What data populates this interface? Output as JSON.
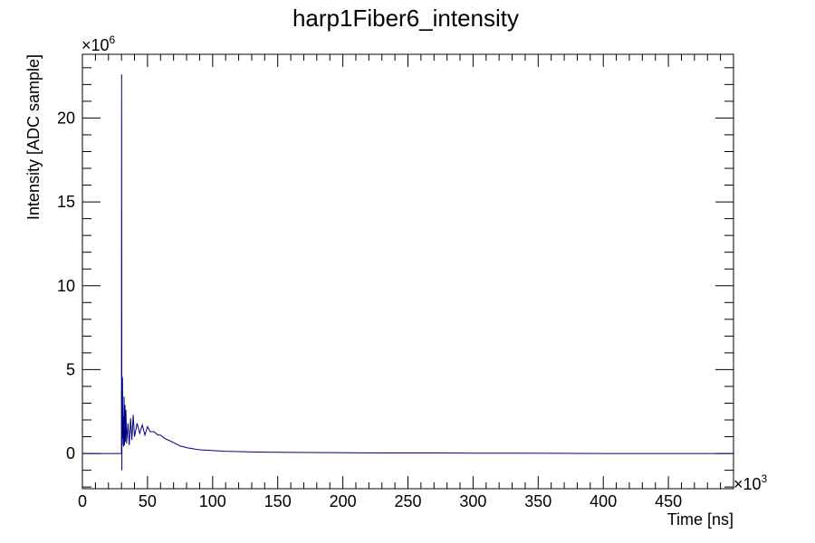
{
  "chart_data": {
    "type": "line",
    "title": "harp1Fiber6_intensity",
    "xlabel": "Time [ns]",
    "ylabel": "Intensity [ADC sample]",
    "x_multiplier": {
      "base": "×10",
      "power": "3"
    },
    "y_multiplier": {
      "base": "×10",
      "power": "6"
    },
    "xlim": [
      0,
      500
    ],
    "ylim": [
      -2.1,
      23.8
    ],
    "x_ticks": [
      0,
      50,
      100,
      150,
      200,
      250,
      300,
      350,
      400,
      450
    ],
    "x_tick_labels": [
      "0",
      "50",
      "100",
      "150",
      "200",
      "250",
      "300",
      "350",
      "400",
      "450"
    ],
    "y_ticks": [
      0,
      5,
      10,
      15,
      20
    ],
    "y_tick_labels": [
      "0",
      "5",
      "10",
      "15",
      "20"
    ],
    "grid": false,
    "legend": "none",
    "series": [
      {
        "color": "#00007f",
        "x": [
          0,
          29.8,
          30.0,
          30.1,
          30.3,
          30.5,
          30.6,
          30.8,
          31.0,
          31.3,
          31.6,
          32.0,
          32.3,
          32.7,
          33.0,
          33.4,
          34.0,
          35.0,
          36.0,
          37.0,
          38.0,
          39.0,
          40.0,
          42.0,
          44.0,
          46.0,
          48.0,
          50.0,
          52.0,
          55.0,
          58.0,
          60.0,
          63.0,
          66.0,
          70.0,
          75.0,
          80.0,
          85.0,
          90.0,
          100.0,
          110.0,
          120.0,
          130.0,
          140.0,
          150.0,
          170.0,
          190.0,
          210.0,
          240.0,
          270.0,
          300.0,
          330.0,
          365.0,
          400.0,
          450.0,
          500.0
        ],
        "y": [
          0,
          0,
          0.0,
          22.6,
          -1.0,
          4.6,
          0.5,
          4.5,
          0.9,
          2.2,
          0.4,
          3.4,
          0.5,
          2.9,
          0.7,
          2.6,
          0.6,
          1.8,
          0.5,
          2.1,
          0.8,
          2.3,
          1.0,
          1.8,
          1.2,
          1.7,
          1.1,
          1.6,
          1.3,
          1.3,
          1.1,
          1.1,
          0.9,
          0.8,
          0.65,
          0.45,
          0.35,
          0.28,
          0.22,
          0.17,
          0.13,
          0.11,
          0.09,
          0.08,
          0.07,
          0.06,
          0.05,
          0.04,
          0.03,
          0.03,
          0.02,
          0.02,
          0.01,
          0.0,
          0.0,
          0.0
        ]
      }
    ]
  }
}
